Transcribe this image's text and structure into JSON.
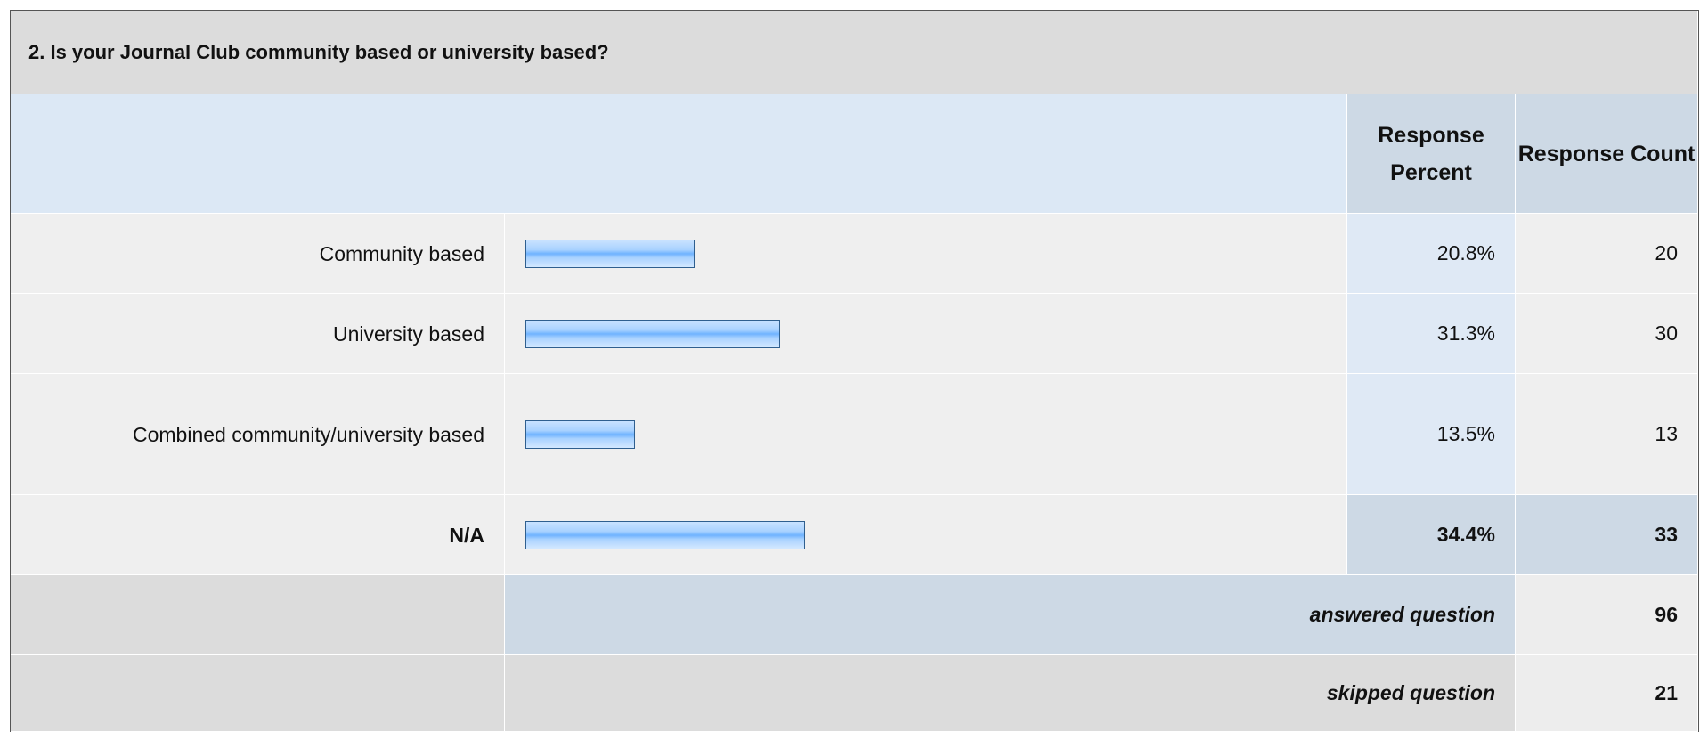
{
  "question": "2. Is your Journal Club community based or university based?",
  "header": {
    "percent": "Response Percent",
    "count": "Response Count"
  },
  "rows": [
    {
      "label": "Community based",
      "percent": 20.8,
      "percent_label": "20.8%",
      "count": 20
    },
    {
      "label": "University based",
      "percent": 31.3,
      "percent_label": "31.3%",
      "count": 30
    },
    {
      "label": "Combined community/university based",
      "percent": 13.5,
      "percent_label": "13.5%",
      "count": 13
    },
    {
      "label": "N/A",
      "percent": 34.4,
      "percent_label": "34.4%",
      "count": 33
    }
  ],
  "answered": {
    "label": "answered question",
    "count": 96
  },
  "skipped": {
    "label": "skipped question",
    "count": 21
  }
}
